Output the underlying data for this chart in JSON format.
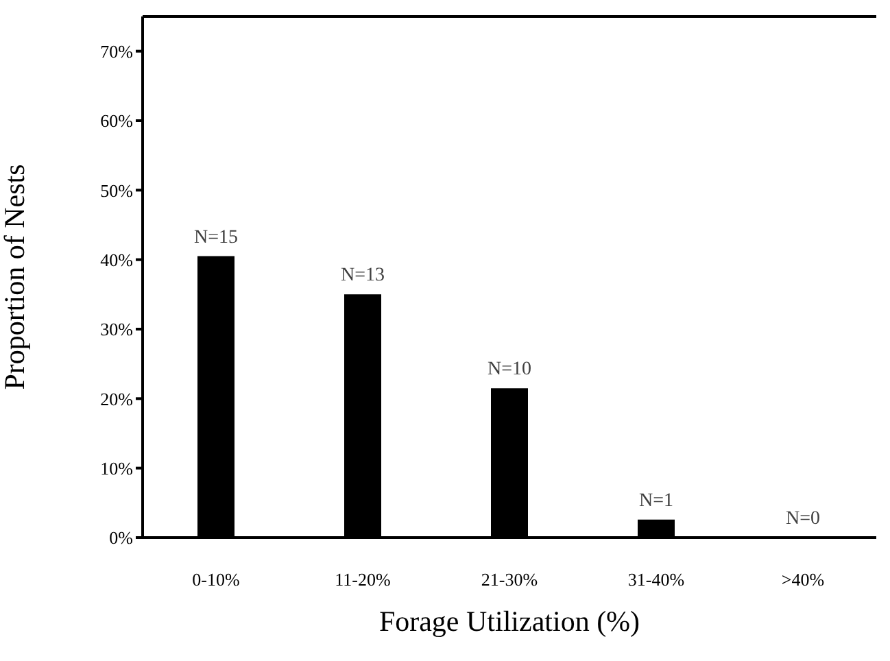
{
  "chart_data": {
    "type": "bar",
    "xlabel": "Forage Utilization (%)",
    "ylabel": "Proportion of Nests",
    "categories": [
      "0-10%",
      "11-20%",
      "21-30%",
      "31-40%",
      ">40%"
    ],
    "values": [
      40.5,
      35.0,
      21.5,
      2.6,
      0
    ],
    "annotations": [
      {
        "text": "N=15",
        "x": "0-10%",
        "y": 40.5
      },
      {
        "text": "N=13",
        "x": "11-20%",
        "y": 35.0
      },
      {
        "text": "N=10",
        "x": "21-30%",
        "y": 21.5
      },
      {
        "text": "N=1",
        "x": "31-40%",
        "y": 2.6
      },
      {
        "text": "N=0",
        "x": ">40%",
        "y": 0
      }
    ],
    "color": "#000000",
    "ylim": [
      0,
      75
    ],
    "yticks": [
      {
        "value": 0,
        "label": "0%"
      },
      {
        "value": 10,
        "label": "10%"
      },
      {
        "value": 20,
        "label": "20%"
      },
      {
        "value": 30,
        "label": "30%"
      },
      {
        "value": 40,
        "label": "40%"
      },
      {
        "value": 50,
        "label": "50%"
      },
      {
        "value": 60,
        "label": "60%"
      },
      {
        "value": 70,
        "label": "70%"
      }
    ],
    "grid": false,
    "legend": false
  }
}
